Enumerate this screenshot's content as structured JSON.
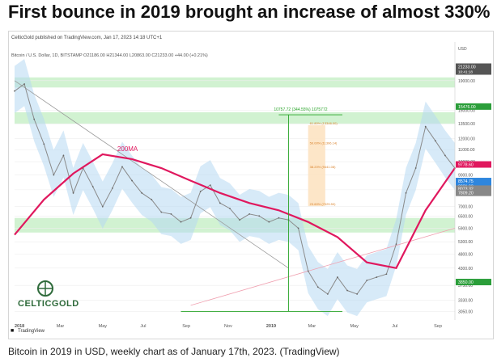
{
  "headline": "First bounce in 2019 brought an increase of almost 330%",
  "publisher_line": "CelticGold published on TradingView.com, Jan 17, 2023 14:18 UTC+1",
  "symbol_line": "Bitcoin / U.S. Dollar, 1D, BITSTAMP  O21186.00  H21344.00  L20863.00  C21233.00  +44.00 (+0.21%)",
  "caption": "Bitcoin in 2019 in USD, weekly chart as of January 17th, 2023. (TradingView)",
  "logo_text": "CELTICGOLD",
  "tv_label": "TradingView",
  "colors": {
    "price": "#8a8a8a",
    "ma": "#e0185e",
    "band": "#b6d8f2",
    "support_zone": "#c9f0c9",
    "fib_zone": "#fde3c2",
    "measure": "#2aa52a",
    "trendline_down": "#9a9a9a",
    "trendline_up": "#f0a0b0"
  },
  "chart_data": {
    "type": "line",
    "scale": "log",
    "ylim": [
      2850,
      21300
    ],
    "x_ticks": [
      "2018",
      "Mar",
      "May",
      "Jul",
      "Sep",
      "Nov",
      "2019",
      "Mar",
      "May",
      "Jul",
      "Sep"
    ],
    "y_ticks": [
      19000,
      15000,
      13500,
      12000,
      11000,
      10000,
      9000,
      8000,
      7000,
      6500,
      5900,
      5300,
      4800,
      4300,
      3750,
      3330,
      3050
    ],
    "price_tags": [
      {
        "label": "21233.00",
        "value": 21233,
        "sub": "10:41:18",
        "color": "#555555"
      },
      {
        "label": "15476.00",
        "value": 15476,
        "color": "#2b9e3a"
      },
      {
        "label": "9778.60",
        "value": 9778.6,
        "color": "#e0185e"
      },
      {
        "label": "8574.75",
        "value": 8574.75,
        "color": "#2e86de"
      },
      {
        "label": "8231.98",
        "value": 8231.98,
        "color": "#2e86de"
      },
      {
        "label": "8073.32",
        "value": 8073.32,
        "color": "#888888"
      },
      {
        "label": "7809.20",
        "value": 7809.2,
        "color": "#888888"
      },
      {
        "label": "3850.00",
        "value": 3850,
        "color": "#2b9e3a"
      }
    ],
    "series": [
      {
        "name": "BTC/USD",
        "x": [
          0,
          2,
          4,
          6,
          8,
          10,
          12,
          14,
          16,
          18,
          20,
          22,
          24,
          26,
          28,
          30,
          32,
          34,
          36,
          38,
          40,
          42,
          44,
          46,
          48,
          50,
          52,
          54,
          56,
          58,
          60,
          62,
          64,
          66,
          68,
          70,
          72,
          74,
          76,
          78,
          80,
          82,
          84,
          86,
          88,
          90
        ],
        "values": [
          17500,
          18500,
          14000,
          11500,
          9000,
          10500,
          7800,
          9500,
          8200,
          7000,
          8100,
          9600,
          8600,
          7800,
          7400,
          6700,
          6600,
          6200,
          6400,
          7900,
          8300,
          7200,
          6900,
          6300,
          6600,
          6500,
          6200,
          6400,
          6300,
          5900,
          4200,
          3700,
          3500,
          4000,
          3600,
          3500,
          3900,
          4000,
          4100,
          5200,
          7800,
          9500,
          13200,
          11800,
          10500,
          9500
        ]
      },
      {
        "name": "200MA",
        "x": [
          0,
          6,
          12,
          18,
          24,
          30,
          36,
          42,
          48,
          54,
          60,
          66,
          72,
          78,
          84,
          90
        ],
        "values": [
          5600,
          7400,
          9100,
          10600,
          10200,
          9500,
          8600,
          7800,
          7200,
          6800,
          6200,
          5500,
          4500,
          4300,
          6800,
          9500
        ]
      }
    ],
    "annotations": {
      "ma_label": "200MA",
      "measure_label": "10757.72 (344.55%) 1075772",
      "fib_levels": [
        {
          "label": "61.80% (13346.00)",
          "value": 13346
        },
        {
          "label": "50.00% (11396.14)",
          "value": 11396
        },
        {
          "label": "38.20% (9441.08)",
          "value": 9441
        },
        {
          "label": "23.60% (7025.50)",
          "value": 7025
        }
      ],
      "resistance_zone": [
        18000,
        19500
      ],
      "upper_zone": [
        13500,
        14800
      ],
      "support_zone": [
        5700,
        6400
      ]
    }
  }
}
